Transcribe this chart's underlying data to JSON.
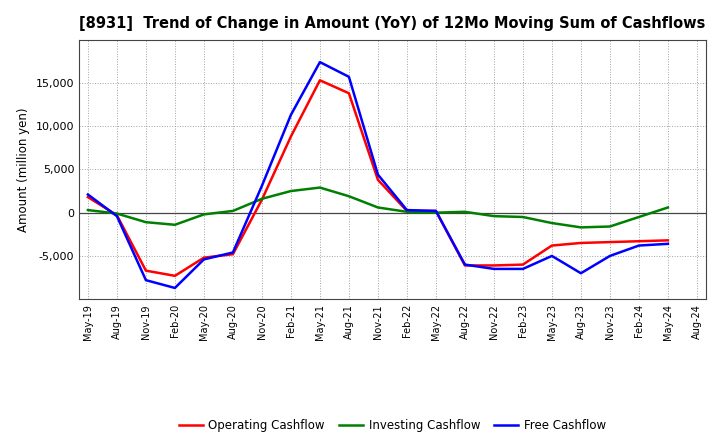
{
  "title": "[8931]  Trend of Change in Amount (YoY) of 12Mo Moving Sum of Cashflows",
  "ylabel": "Amount (million yen)",
  "x_labels": [
    "May-19",
    "Aug-19",
    "Nov-19",
    "Feb-20",
    "May-20",
    "Aug-20",
    "Nov-20",
    "Feb-21",
    "May-21",
    "Aug-21",
    "Nov-21",
    "Feb-22",
    "May-22",
    "Aug-22",
    "Nov-22",
    "Feb-23",
    "May-23",
    "Aug-23",
    "Nov-23",
    "Feb-24",
    "May-24",
    "Aug-24"
  ],
  "operating": [
    1800,
    -300,
    -6700,
    -7300,
    -5200,
    -4800,
    1500,
    8800,
    15300,
    13800,
    3800,
    200,
    200,
    -6100,
    -6100,
    -6000,
    -3800,
    -3500,
    -3400,
    -3300,
    -3200,
    null
  ],
  "investing": [
    300,
    -100,
    -1100,
    -1400,
    -200,
    200,
    1600,
    2500,
    2900,
    1900,
    600,
    100,
    0,
    100,
    -400,
    -500,
    -1200,
    -1700,
    -1600,
    -500,
    600,
    null
  ],
  "free": [
    2100,
    -400,
    -7800,
    -8700,
    -5400,
    -4600,
    3100,
    11300,
    17400,
    15700,
    4400,
    300,
    200,
    -6000,
    -6500,
    -6500,
    -5000,
    -7000,
    -5000,
    -3800,
    -3600,
    null
  ],
  "operating_color": "#ff0000",
  "investing_color": "#008000",
  "free_color": "#0000ff",
  "ylim_min": -10000,
  "ylim_max": 20000,
  "yticks": [
    -5000,
    0,
    5000,
    10000,
    15000
  ],
  "background_color": "#ffffff",
  "grid_color": "#999999"
}
